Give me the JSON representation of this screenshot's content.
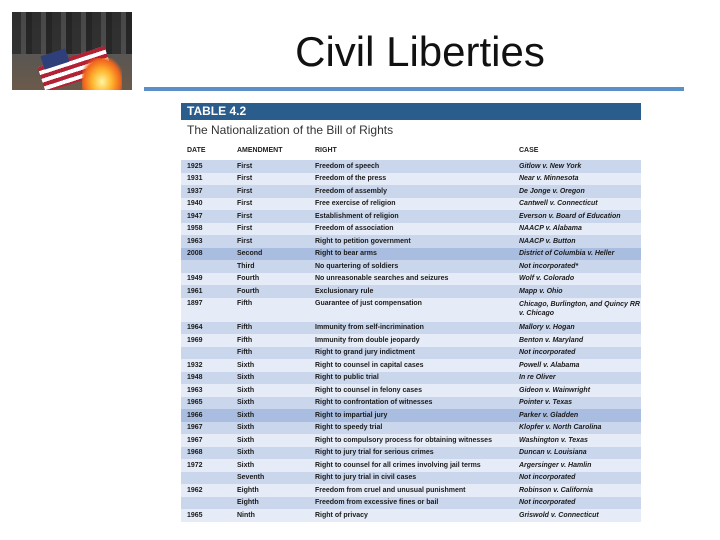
{
  "slide": {
    "title": "Civil Liberties"
  },
  "table": {
    "label": "TABLE 4.2",
    "subtitle": "The Nationalization of the Bill of Rights",
    "columns": [
      "DATE",
      "AMENDMENT",
      "RIGHT",
      "CASE"
    ],
    "rows": [
      [
        "1925",
        "First",
        "Freedom of speech",
        "Gitlow v. New York"
      ],
      [
        "1931",
        "First",
        "Freedom of the press",
        "Near v. Minnesota"
      ],
      [
        "1937",
        "First",
        "Freedom of assembly",
        "De Jonge v. Oregon"
      ],
      [
        "1940",
        "First",
        "Free exercise of religion",
        "Cantwell v. Connecticut"
      ],
      [
        "1947",
        "First",
        "Establishment of religion",
        "Everson v. Board of Education"
      ],
      [
        "1958",
        "First",
        "Freedom of association",
        "NAACP v. Alabama"
      ],
      [
        "1963",
        "First",
        "Right to petition government",
        "NAACP v. Button"
      ],
      [
        "2008",
        "Second",
        "Right to bear arms",
        "District of Columbia v. Heller"
      ],
      [
        "",
        "Third",
        "No quartering of soldiers",
        "Not incorporated*"
      ],
      [
        "1949",
        "Fourth",
        "No unreasonable searches and seizures",
        "Wolf v. Colorado"
      ],
      [
        "1961",
        "Fourth",
        "Exclusionary rule",
        "Mapp v. Ohio"
      ],
      [
        "1897",
        "Fifth",
        "Guarantee of just compensation",
        "Chicago, Burlington, and Quincy RR v. Chicago"
      ],
      [
        "1964",
        "Fifth",
        "Immunity from self-incrimination",
        "Mallory v. Hogan"
      ],
      [
        "1969",
        "Fifth",
        "Immunity from double jeopardy",
        "Benton v. Maryland"
      ],
      [
        "",
        "Fifth",
        "Right to grand jury indictment",
        "Not incorporated"
      ],
      [
        "1932",
        "Sixth",
        "Right to counsel in capital cases",
        "Powell v. Alabama"
      ],
      [
        "1948",
        "Sixth",
        "Right to public trial",
        "In re Oliver"
      ],
      [
        "1963",
        "Sixth",
        "Right to counsel in felony cases",
        "Gideon v. Wainwright"
      ],
      [
        "1965",
        "Sixth",
        "Right to confrontation of witnesses",
        "Pointer v. Texas"
      ],
      [
        "1966",
        "Sixth",
        "Right to impartial jury",
        "Parker v. Gladden"
      ],
      [
        "1967",
        "Sixth",
        "Right to speedy trial",
        "Klopfer v. North Carolina"
      ],
      [
        "1967",
        "Sixth",
        "Right to compulsory process for obtaining witnesses",
        "Washington v. Texas"
      ],
      [
        "1968",
        "Sixth",
        "Right to jury trial for serious crimes",
        "Duncan v. Louisiana"
      ],
      [
        "1972",
        "Sixth",
        "Right to counsel for all crimes involving jail terms",
        "Argersinger v. Hamlin"
      ],
      [
        "",
        "Seventh",
        "Right to jury trial in civil cases",
        "Not incorporated"
      ],
      [
        "1962",
        "Eighth",
        "Freedom from cruel and unusual punishment",
        "Robinson v. California"
      ],
      [
        "",
        "Eighth",
        "Freedom from excessive fines or bail",
        "Not incorporated"
      ],
      [
        "1965",
        "Ninth",
        "Right of privacy",
        "Griswold v. Connecticut"
      ]
    ]
  }
}
